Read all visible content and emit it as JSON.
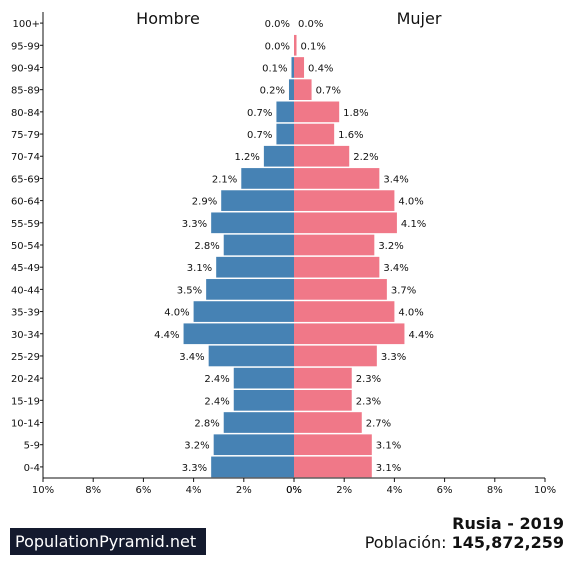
{
  "chart_data": {
    "type": "bar",
    "left_title": "Hombre",
    "right_title": "Mujer",
    "categories": [
      "100+",
      "95-99",
      "90-94",
      "85-89",
      "80-84",
      "75-79",
      "70-74",
      "65-69",
      "60-64",
      "55-59",
      "50-54",
      "45-49",
      "40-44",
      "35-39",
      "30-34",
      "25-29",
      "20-24",
      "15-19",
      "10-14",
      "5-9",
      "0-4"
    ],
    "series": [
      {
        "name": "Hombre",
        "values": [
          0.0,
          0.0,
          0.1,
          0.2,
          0.7,
          0.7,
          1.2,
          2.1,
          2.9,
          3.3,
          2.8,
          3.1,
          3.5,
          4.0,
          4.4,
          3.4,
          2.4,
          2.4,
          2.8,
          3.2,
          3.3
        ],
        "labels": [
          "0.0%",
          "0.0%",
          "0.1%",
          "0.2%",
          "0.7%",
          "0.7%",
          "1.2%",
          "2.1%",
          "2.9%",
          "3.3%",
          "2.8%",
          "3.1%",
          "3.5%",
          "4.0%",
          "4.4%",
          "3.4%",
          "2.4%",
          "2.4%",
          "2.8%",
          "3.2%",
          "3.3%"
        ]
      },
      {
        "name": "Mujer",
        "values": [
          0.0,
          0.1,
          0.4,
          0.7,
          1.8,
          1.6,
          2.2,
          3.4,
          4.0,
          4.1,
          3.2,
          3.4,
          3.7,
          4.0,
          4.4,
          3.3,
          2.3,
          2.3,
          2.7,
          3.1,
          3.1
        ],
        "labels": [
          "0.0%",
          "0.1%",
          "0.4%",
          "0.7%",
          "1.8%",
          "1.6%",
          "2.2%",
          "3.4%",
          "4.0%",
          "4.1%",
          "3.2%",
          "3.4%",
          "3.7%",
          "4.0%",
          "4.4%",
          "3.3%",
          "2.3%",
          "2.3%",
          "2.7%",
          "3.1%",
          "3.1%"
        ]
      }
    ],
    "xlim": [
      0,
      10
    ],
    "xticks_left": [
      "10%",
      "8%",
      "6%",
      "4%",
      "2%",
      "0%"
    ],
    "xticks_right": [
      "0%",
      "2%",
      "4%",
      "6%",
      "8%",
      "10%"
    ],
    "colors": {
      "Hombre": "#4682b4",
      "Mujer": "#f07888"
    }
  },
  "footer": {
    "brand": "PopulationPyramid.net",
    "country_year": "Rusia - 2019",
    "population_label": "Población:",
    "population_value": "145,872,259"
  }
}
